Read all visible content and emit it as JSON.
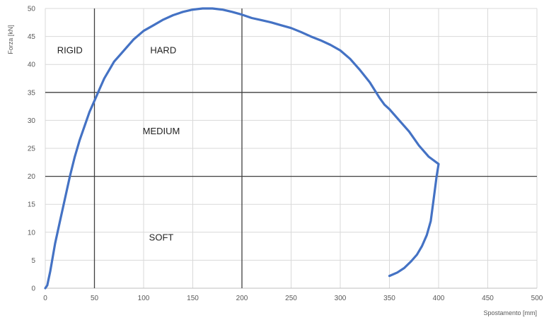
{
  "chart_data": {
    "type": "line",
    "title": "",
    "xlabel": "Spostamento [mm]",
    "ylabel": "Forza [kN]",
    "xlim": [
      0,
      500
    ],
    "ylim": [
      0,
      50
    ],
    "x_ticks": [
      0,
      50,
      100,
      150,
      200,
      250,
      300,
      350,
      400,
      450,
      500
    ],
    "y_ticks": [
      0,
      5,
      10,
      15,
      20,
      25,
      30,
      35,
      40,
      45,
      50
    ],
    "grid": true,
    "series_color": "#4472C4",
    "series": [
      {
        "x": [
          0,
          2,
          5,
          10,
          15,
          20,
          25,
          30,
          35,
          40,
          45,
          50,
          55,
          60,
          65,
          70,
          75,
          80,
          90,
          100,
          110,
          120,
          130,
          140,
          150,
          160,
          170,
          180,
          190,
          200,
          210,
          220,
          230,
          240,
          250,
          260,
          270,
          280,
          290,
          300,
          310,
          320,
          330,
          340,
          345,
          350,
          360,
          370,
          380,
          390,
          400,
          398,
          395,
          392,
          388,
          383,
          378,
          372,
          365,
          358,
          350
        ],
        "y": [
          0,
          0.5,
          3,
          8,
          12,
          16,
          20,
          23.5,
          26.5,
          29,
          31.5,
          33.5,
          35.5,
          37.5,
          39,
          40.5,
          41.5,
          42.5,
          44.5,
          46,
          47,
          48,
          48.8,
          49.4,
          49.8,
          50,
          50,
          49.8,
          49.4,
          48.9,
          48.3,
          47.9,
          47.5,
          47,
          46.5,
          45.8,
          45,
          44.3,
          43.5,
          42.5,
          41,
          39,
          36.8,
          34,
          32.8,
          32,
          30,
          28,
          25.5,
          23.5,
          22.2,
          20,
          16,
          12,
          9.5,
          7.5,
          6,
          4.8,
          3.6,
          2.8,
          2.2
        ]
      }
    ],
    "threshold_lines": {
      "x": [
        50,
        200
      ],
      "y": [
        20,
        35
      ],
      "color": "#404040"
    },
    "annotations": [
      {
        "text": "RIGID",
        "x": 25,
        "y": 42
      },
      {
        "text": "HARD",
        "x": 120,
        "y": 42
      },
      {
        "text": "MEDIUM",
        "x": 118,
        "y": 27.5
      },
      {
        "text": "SOFT",
        "x": 118,
        "y": 8.5
      }
    ]
  }
}
